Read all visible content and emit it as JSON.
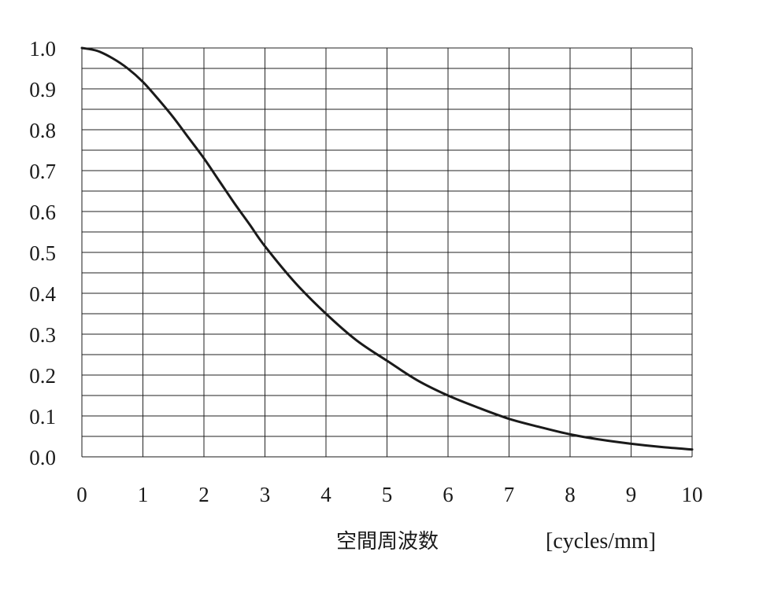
{
  "chart_data": {
    "type": "line",
    "title": "",
    "xlabel": "空間周波数",
    "xlabel_unit": "[cycles/mm]",
    "ylabel": "",
    "xlim": [
      0,
      10
    ],
    "ylim": [
      0,
      1.0
    ],
    "grid": true,
    "x_ticks": [
      0,
      1,
      2,
      3,
      4,
      5,
      6,
      7,
      8,
      9,
      10
    ],
    "x_tick_labels": [
      "0",
      "1",
      "2",
      "3",
      "4",
      "5",
      "6",
      "7",
      "8",
      "9",
      "10"
    ],
    "y_ticks": [
      0.0,
      0.1,
      0.2,
      0.3,
      0.4,
      0.5,
      0.6,
      0.7,
      0.8,
      0.9,
      1.0
    ],
    "y_tick_labels": [
      "0.0",
      "0.1",
      "0.2",
      "0.3",
      "0.4",
      "0.5",
      "0.6",
      "0.7",
      "0.8",
      "0.9",
      "1.0"
    ],
    "y_minor_step": 0.05,
    "series": [
      {
        "x": [
          0,
          0.25,
          0.5,
          0.75,
          1,
          1.25,
          1.5,
          1.75,
          2,
          2.25,
          2.5,
          2.75,
          3,
          3.5,
          4,
          4.5,
          5,
          5.5,
          6,
          6.5,
          7,
          7.5,
          8,
          8.5,
          9,
          9.5,
          10
        ],
        "y": [
          1.0,
          0.993,
          0.975,
          0.95,
          0.917,
          0.875,
          0.83,
          0.78,
          0.73,
          0.675,
          0.62,
          0.568,
          0.515,
          0.425,
          0.35,
          0.285,
          0.235,
          0.187,
          0.15,
          0.12,
          0.093,
          0.073,
          0.055,
          0.042,
          0.032,
          0.024,
          0.018
        ],
        "color": "#1a1a1a"
      }
    ]
  }
}
